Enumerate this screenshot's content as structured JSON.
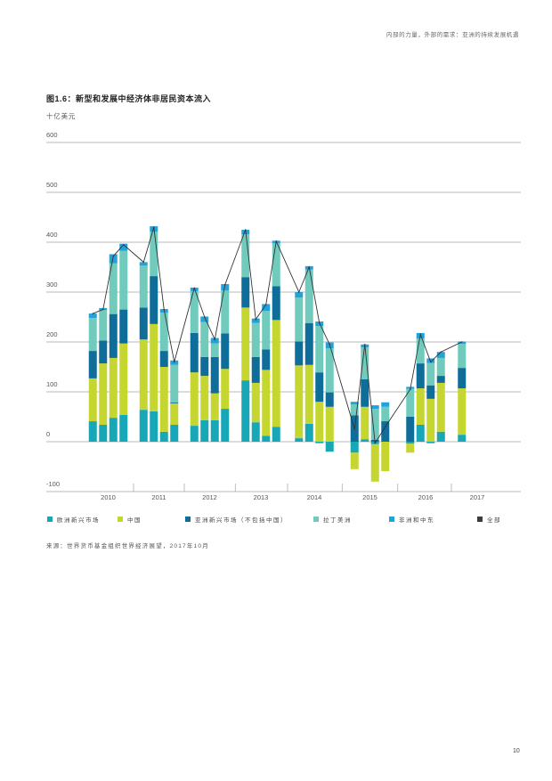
{
  "header": {
    "running_title": "内部的力量，外部的需求：亚洲的持续发展机遇"
  },
  "source": "来源：世界货币基金组织世界经济展望，2017年10月",
  "page_number": "10",
  "chart_data": {
    "type": "bar",
    "stacked": true,
    "title": "图1.6：新型和发展中经济体非居民资本流入",
    "ylabel": "十亿美元",
    "xlabel": "",
    "ylim": [
      -100,
      600
    ],
    "yticks": [
      600,
      500,
      400,
      300,
      200,
      100,
      0,
      -100
    ],
    "grid": true,
    "legend_position": "bottom",
    "x_tick_labels": [
      "2010",
      "2011",
      "2012",
      "2013",
      "2014",
      "2015",
      "2016",
      "2017"
    ],
    "x": [
      2010.0,
      2010.25,
      2010.5,
      2010.75,
      2011.0,
      2011.25,
      2011.5,
      2011.75,
      2012.0,
      2012.25,
      2012.5,
      2012.75,
      2013.0,
      2013.25,
      2013.5,
      2013.75,
      2014.0,
      2014.25,
      2014.5,
      2014.75,
      2015.0,
      2015.25,
      2015.5,
      2015.75,
      2016.0,
      2016.25,
      2016.5,
      2016.75,
      2017.0
    ],
    "series": [
      {
        "name": "欧洲新兴市场",
        "type": "bar",
        "color": "#17a7b6",
        "values": [
          41,
          34,
          48,
          54,
          64,
          61,
          20,
          34,
          32,
          43,
          43,
          66,
          123,
          39,
          12,
          30,
          7,
          36,
          -3,
          -20,
          -22,
          5,
          -5,
          0,
          -4,
          34,
          -3,
          20,
          14
        ]
      },
      {
        "name": "中国",
        "type": "bar",
        "color": "#c5d630",
        "values": [
          86,
          123,
          120,
          143,
          141,
          175,
          130,
          43,
          107,
          89,
          54,
          80,
          146,
          79,
          132,
          214,
          146,
          118,
          80,
          70,
          -33,
          65,
          -75,
          -59,
          -18,
          73,
          86,
          98,
          93
        ]
      },
      {
        "name": "亚洲新兴市场（不包括中国）",
        "type": "bar",
        "color": "#0e6d99",
        "values": [
          55,
          46,
          88,
          68,
          64,
          96,
          32,
          2,
          79,
          38,
          73,
          71,
          61,
          52,
          41,
          68,
          48,
          84,
          59,
          29,
          53,
          55,
          4,
          41,
          50,
          50,
          27,
          14,
          41
        ]
      },
      {
        "name": "拉丁美洲",
        "type": "bar",
        "color": "#70cbbd",
        "values": [
          66,
          61,
          102,
          118,
          84,
          89,
          77,
          75,
          84,
          70,
          27,
          86,
          86,
          68,
          77,
          86,
          88,
          107,
          93,
          88,
          22,
          64,
          62,
          29,
          56,
          50,
          45,
          36,
          48
        ]
      },
      {
        "name": "非洲和中东",
        "type": "bar",
        "color": "#23a1d9",
        "values": [
          9,
          4,
          18,
          14,
          7,
          11,
          7,
          9,
          7,
          11,
          11,
          13,
          9,
          9,
          14,
          5,
          11,
          7,
          9,
          12,
          5,
          6,
          7,
          9,
          4,
          11,
          9,
          12,
          5
        ]
      },
      {
        "name": "全部",
        "type": "line",
        "color": "#3c3c3c",
        "values": [
          257,
          265,
          372,
          395,
          360,
          430,
          265,
          160,
          308,
          250,
          205,
          315,
          425,
          245,
          275,
          402,
          300,
          350,
          238,
          195,
          25,
          195,
          -3,
          30,
          105,
          215,
          160,
          180,
          200
        ]
      }
    ]
  }
}
